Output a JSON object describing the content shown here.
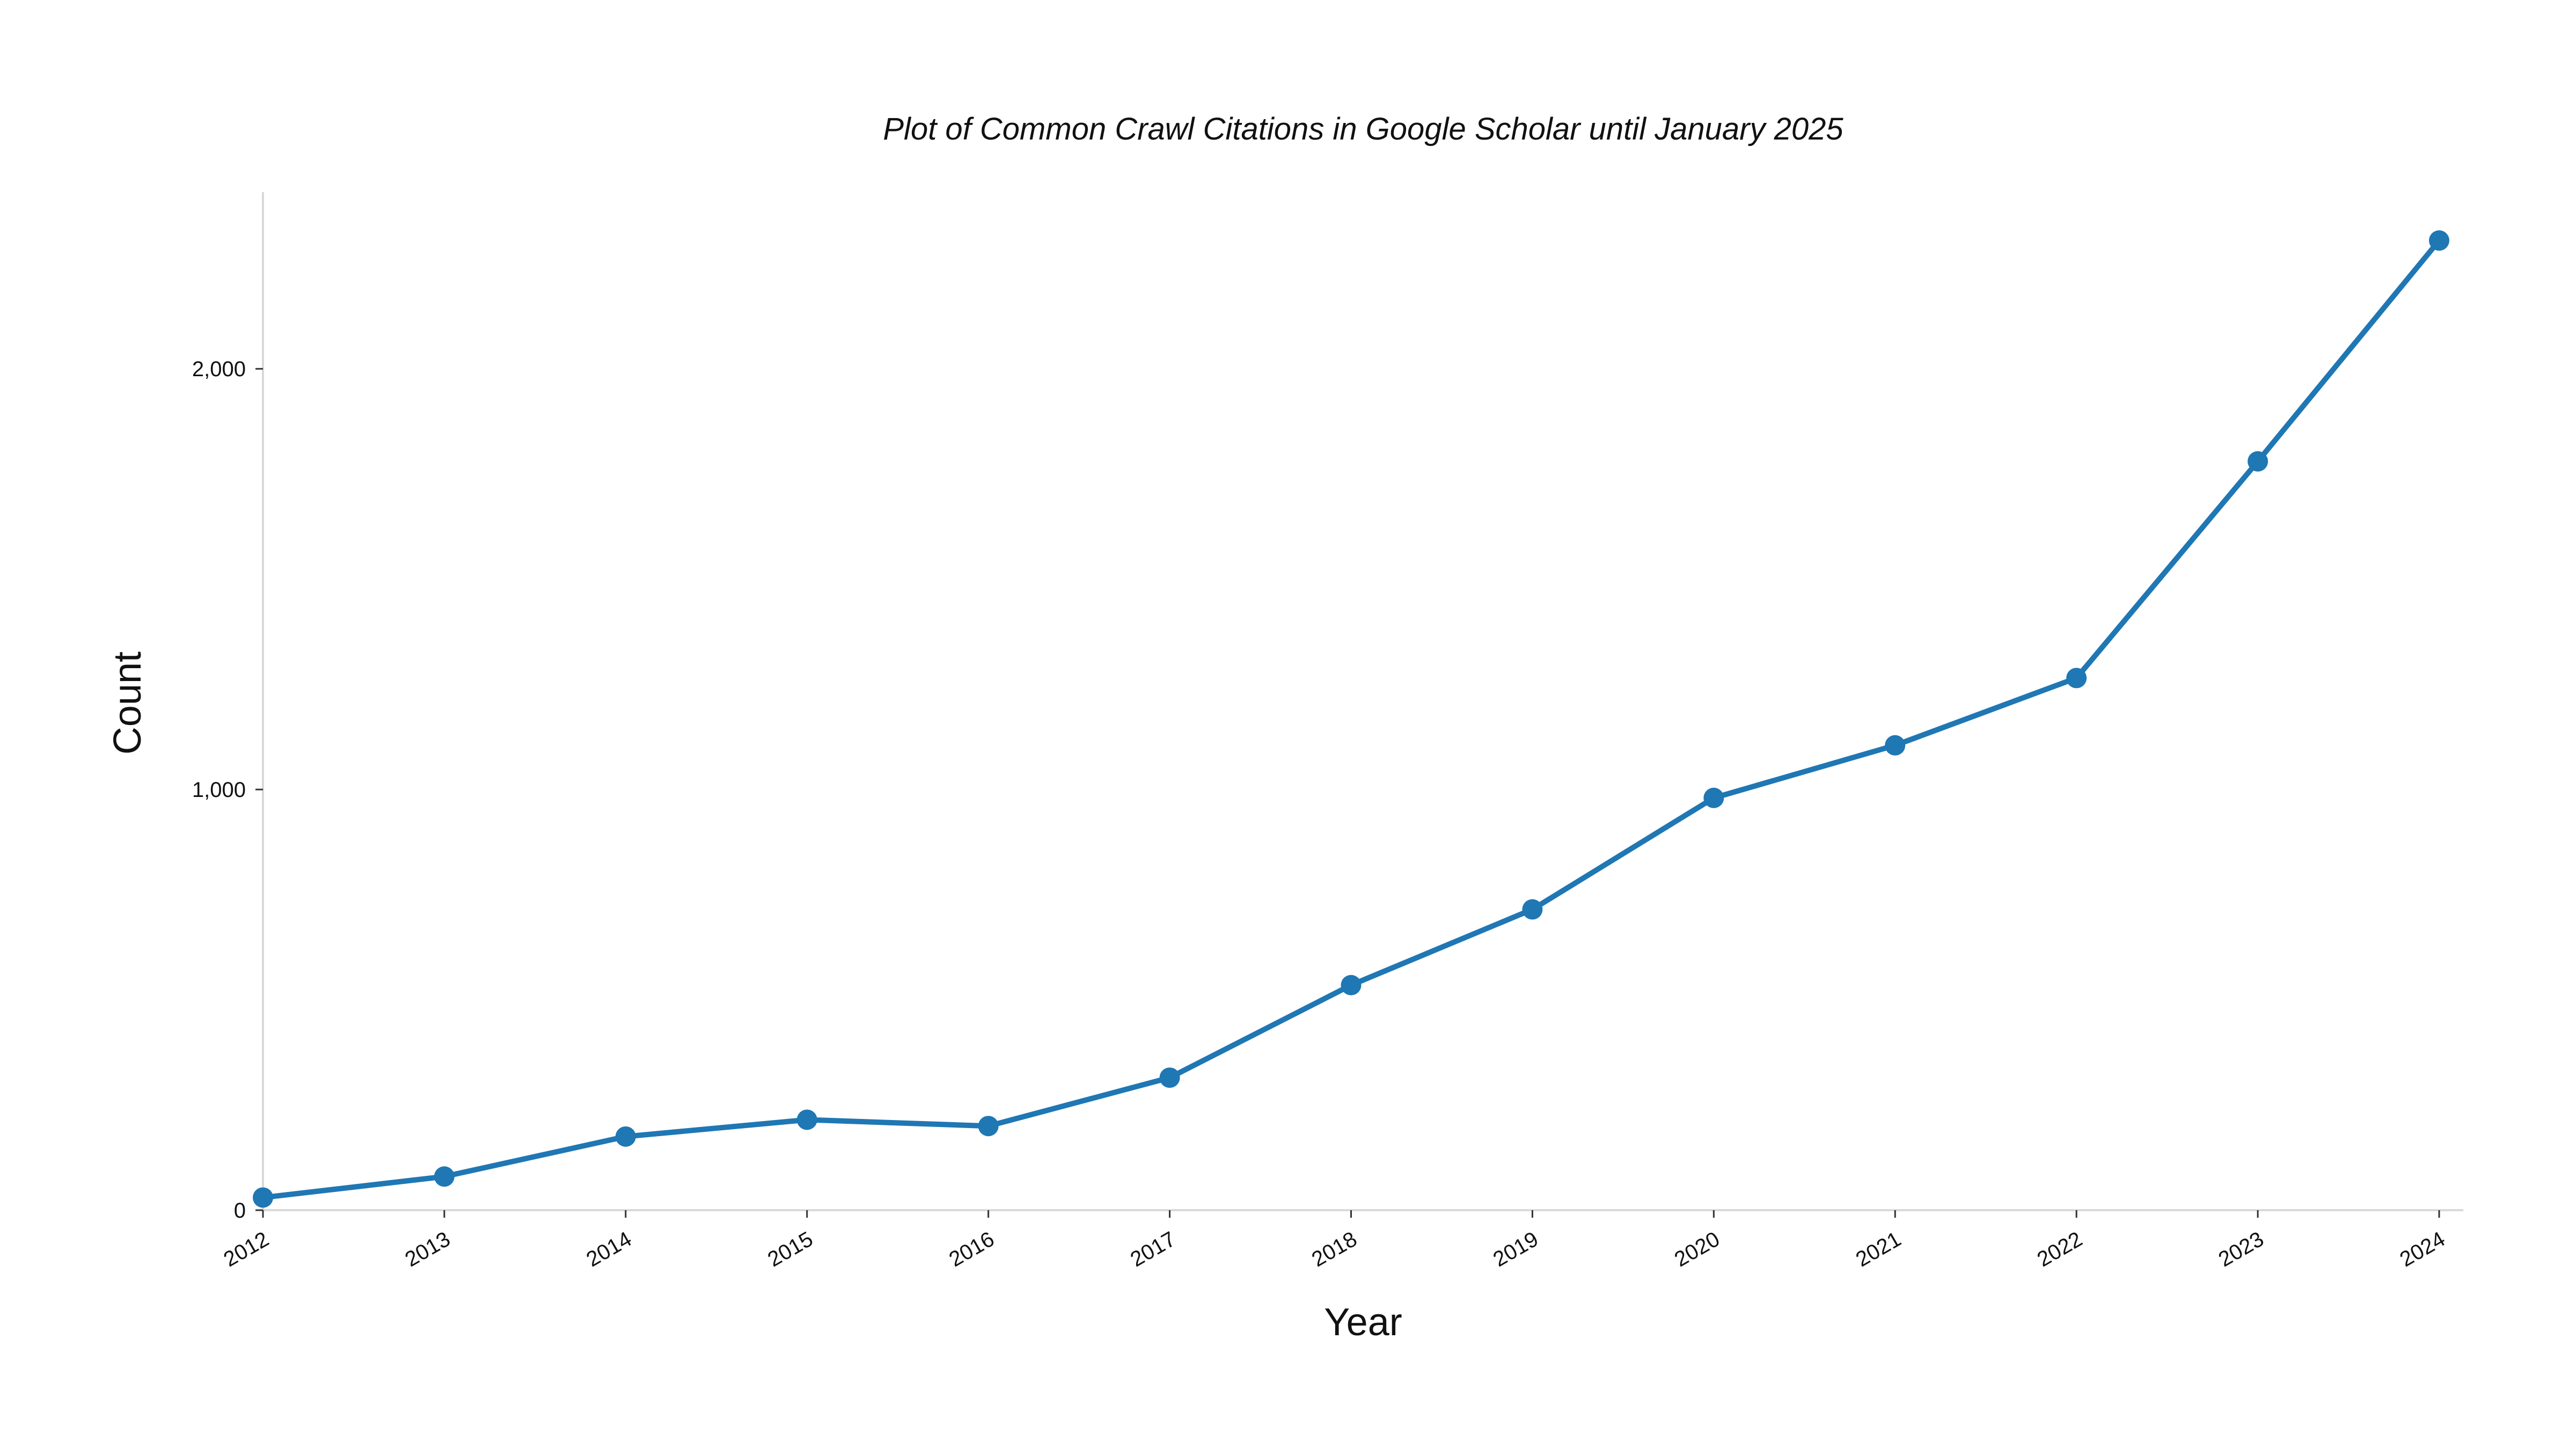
{
  "chart_data": {
    "type": "line",
    "title": "Plot of Common Crawl Citations in Google Scholar until January 2025",
    "xlabel": "Year",
    "ylabel": "Count",
    "x": [
      "2012",
      "2013",
      "2014",
      "2015",
      "2016",
      "2017",
      "2018",
      "2019",
      "2020",
      "2021",
      "2022",
      "2023",
      "2024"
    ],
    "series": [
      {
        "values": [
          30,
          80,
          175,
          215,
          200,
          315,
          535,
          715,
          980,
          1105,
          1265,
          1780,
          2305
        ],
        "color": "#1f77b4"
      }
    ],
    "ylim": [
      0,
      2420
    ],
    "yticks": [
      0,
      1000,
      2000
    ],
    "ytick_labels": [
      "0",
      "1,000",
      "2,000"
    ],
    "grid": false,
    "legend": "none"
  }
}
